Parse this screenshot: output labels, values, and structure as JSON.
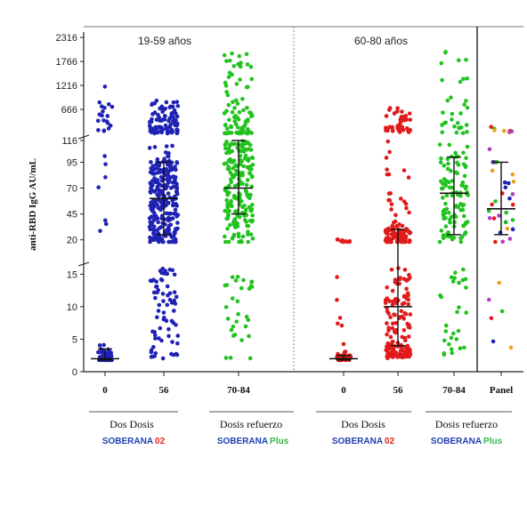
{
  "chart_data": {
    "type": "scatter",
    "ylabel": "anti-RBD IgG AU/mL",
    "y_axis_segments": [
      {
        "ticks": [
          0,
          5,
          10,
          15
        ],
        "range": [
          0,
          16
        ]
      },
      {
        "ticks": [
          20,
          45,
          70,
          95
        ],
        "range": [
          18,
          116
        ]
      },
      {
        "ticks": [
          116,
          666,
          1216,
          1766,
          2316
        ],
        "range": [
          116,
          2400
        ]
      }
    ],
    "panels": [
      {
        "title": "19-59 años"
      },
      {
        "title": "60-80 años"
      }
    ],
    "categories": [
      "0",
      "56",
      "70-84",
      "0",
      "56",
      "70-84",
      "Panel"
    ],
    "series": [
      {
        "x": "0",
        "panel": 0,
        "color": "#1f22b4",
        "median": 2,
        "iqr": [
          1.8,
          3.5
        ],
        "range": [
          1.8,
          1200
        ]
      },
      {
        "x": "56",
        "panel": 0,
        "color": "#1f22b4",
        "median": 60,
        "iqr": [
          25,
          95
        ],
        "range": [
          2,
          900
        ]
      },
      {
        "x": "70-84",
        "panel": 0,
        "color": "#22c21f",
        "median": 70,
        "iqr": [
          45,
          116
        ],
        "range": [
          2,
          2000
        ]
      },
      {
        "x": "0",
        "panel": 1,
        "color": "#e01b1b",
        "median": 2,
        "iqr": [
          1.8,
          2.5
        ],
        "range": [
          1.8,
          25
        ]
      },
      {
        "x": "56",
        "panel": 1,
        "color": "#e01b1b",
        "median": 10,
        "iqr": [
          4,
          30
        ],
        "range": [
          2,
          700
        ]
      },
      {
        "x": "70-84",
        "panel": 1,
        "color": "#22c21f",
        "median": 65,
        "iqr": [
          25,
          100
        ],
        "range": [
          2,
          2000
        ]
      },
      {
        "x": "Panel",
        "panel": 2,
        "color": "multi",
        "median": 50,
        "iqr": [
          25,
          95
        ],
        "range": [
          3,
          300
        ]
      }
    ],
    "groups": [
      {
        "label": "Dos Dosis",
        "brand_a": "SOBERANA",
        "brand_b": "02",
        "brand_color": "#1f3fb0",
        "brand_b_color": "#e0251b"
      },
      {
        "label": "Dosis refuerzo",
        "brand_a": "SOBERANA",
        "brand_b": "Plus",
        "brand_color": "#1f3fb0",
        "brand_b_color": "#39b54a"
      },
      {
        "label": "Dos Dosis",
        "brand_a": "SOBERANA",
        "brand_b": "02",
        "brand_color": "#1f3fb0",
        "brand_b_color": "#e0251b"
      },
      {
        "label": "Dosis refuerzo",
        "brand_a": "SOBERANA",
        "brand_b": "Plus",
        "brand_color": "#1f3fb0",
        "brand_b_color": "#39b54a"
      }
    ]
  }
}
